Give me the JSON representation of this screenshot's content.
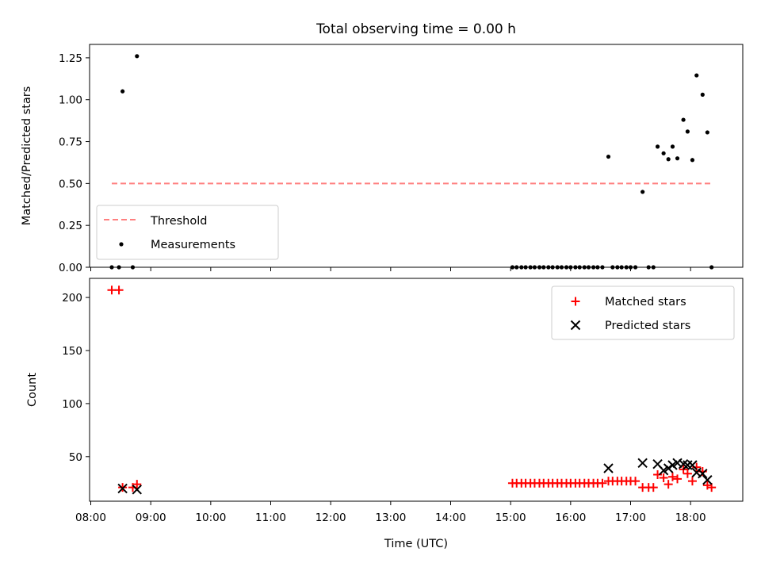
{
  "title": "Total observing time = 0.00 h",
  "chart_data": [
    {
      "type": "scatter",
      "panel": "top",
      "ylabel": "Matched/Predicted stars",
      "ylim": [
        0,
        1.33
      ],
      "yticks": [
        0,
        0.25,
        0.5,
        0.75,
        1.0,
        1.25
      ],
      "ytick_labels": [
        "0.00",
        "0.25",
        "0.50",
        "0.75",
        "1.00",
        "1.25"
      ],
      "xlim": [
        7.98,
        18.87
      ],
      "legend_position": "lower-left",
      "threshold": {
        "name": "Threshold",
        "value": 0.5,
        "x_range": [
          8.35,
          18.35
        ],
        "color": "#ff7f7f"
      },
      "series": [
        {
          "name": "Measurements",
          "color": "#000000",
          "points": [
            [
              8.35,
              0.0
            ],
            [
              8.47,
              0.0
            ],
            [
              8.53,
              1.05
            ],
            [
              8.7,
              0.0
            ],
            [
              8.77,
              1.26
            ],
            [
              15.03,
              0.0
            ],
            [
              15.1,
              0.0
            ],
            [
              15.18,
              0.0
            ],
            [
              15.25,
              0.0
            ],
            [
              15.33,
              0.0
            ],
            [
              15.4,
              0.0
            ],
            [
              15.48,
              0.0
            ],
            [
              15.55,
              0.0
            ],
            [
              15.63,
              0.0
            ],
            [
              15.7,
              0.0
            ],
            [
              15.78,
              0.0
            ],
            [
              15.85,
              0.0
            ],
            [
              15.93,
              0.0
            ],
            [
              16.0,
              0.0
            ],
            [
              16.08,
              0.0
            ],
            [
              16.15,
              0.0
            ],
            [
              16.23,
              0.0
            ],
            [
              16.3,
              0.0
            ],
            [
              16.38,
              0.0
            ],
            [
              16.45,
              0.0
            ],
            [
              16.53,
              0.0
            ],
            [
              16.63,
              0.66
            ],
            [
              16.7,
              0.0
            ],
            [
              16.78,
              0.0
            ],
            [
              16.85,
              0.0
            ],
            [
              16.93,
              0.0
            ],
            [
              17.0,
              0.0
            ],
            [
              17.08,
              0.0
            ],
            [
              17.2,
              0.45
            ],
            [
              17.3,
              0.0
            ],
            [
              17.38,
              0.0
            ],
            [
              17.45,
              0.72
            ],
            [
              17.55,
              0.68
            ],
            [
              17.63,
              0.645
            ],
            [
              17.7,
              0.72
            ],
            [
              17.78,
              0.65
            ],
            [
              17.88,
              0.88
            ],
            [
              17.95,
              0.81
            ],
            [
              18.03,
              0.64
            ],
            [
              18.1,
              1.145
            ],
            [
              18.2,
              1.03
            ],
            [
              18.28,
              0.805
            ],
            [
              18.35,
              0.0
            ]
          ]
        }
      ]
    },
    {
      "type": "scatter",
      "panel": "bottom",
      "ylabel": "Count",
      "xlabel": "Time (UTC)",
      "ylim": [
        8,
        218
      ],
      "yticks": [
        50,
        100,
        150,
        200
      ],
      "xlim": [
        7.98,
        18.87
      ],
      "xticks": [
        8,
        9,
        10,
        11,
        12,
        13,
        14,
        15,
        16,
        17,
        18
      ],
      "xtick_labels": [
        "08:00",
        "09:00",
        "10:00",
        "11:00",
        "12:00",
        "13:00",
        "14:00",
        "15:00",
        "16:00",
        "17:00",
        "18:00"
      ],
      "legend_position": "top-right",
      "series": [
        {
          "name": "Matched stars",
          "marker": "plus",
          "color": "#ff0000",
          "points": [
            [
              8.35,
              207
            ],
            [
              8.47,
              207
            ],
            [
              8.53,
              21
            ],
            [
              8.7,
              21
            ],
            [
              8.77,
              24
            ],
            [
              15.03,
              25
            ],
            [
              15.1,
              25
            ],
            [
              15.18,
              25
            ],
            [
              15.25,
              25
            ],
            [
              15.33,
              25
            ],
            [
              15.4,
              25
            ],
            [
              15.48,
              25
            ],
            [
              15.55,
              25
            ],
            [
              15.63,
              25
            ],
            [
              15.7,
              25
            ],
            [
              15.78,
              25
            ],
            [
              15.85,
              25
            ],
            [
              15.93,
              25
            ],
            [
              16.0,
              25
            ],
            [
              16.08,
              25
            ],
            [
              16.15,
              25
            ],
            [
              16.23,
              25
            ],
            [
              16.3,
              25
            ],
            [
              16.38,
              25
            ],
            [
              16.45,
              25
            ],
            [
              16.53,
              25
            ],
            [
              16.63,
              27
            ],
            [
              16.7,
              27
            ],
            [
              16.78,
              27
            ],
            [
              16.85,
              27
            ],
            [
              16.93,
              27
            ],
            [
              17.0,
              27
            ],
            [
              17.08,
              27
            ],
            [
              17.2,
              21
            ],
            [
              17.3,
              21
            ],
            [
              17.38,
              21
            ],
            [
              17.45,
              33
            ],
            [
              17.55,
              30
            ],
            [
              17.63,
              24
            ],
            [
              17.7,
              31
            ],
            [
              17.78,
              29
            ],
            [
              17.88,
              38
            ],
            [
              17.95,
              34
            ],
            [
              18.03,
              27
            ],
            [
              18.1,
              40
            ],
            [
              18.2,
              36
            ],
            [
              18.28,
              23
            ],
            [
              18.35,
              21
            ]
          ]
        },
        {
          "name": "Predicted stars",
          "marker": "x",
          "color": "#000000",
          "points": [
            [
              8.53,
              20
            ],
            [
              8.77,
              19
            ],
            [
              16.63,
              39
            ],
            [
              17.2,
              44
            ],
            [
              17.45,
              43
            ],
            [
              17.55,
              37
            ],
            [
              17.63,
              39
            ],
            [
              17.7,
              42
            ],
            [
              17.78,
              44
            ],
            [
              17.88,
              43
            ],
            [
              17.95,
              42
            ],
            [
              18.03,
              42
            ],
            [
              18.1,
              35
            ],
            [
              18.2,
              34
            ],
            [
              18.28,
              28
            ]
          ]
        }
      ]
    }
  ]
}
